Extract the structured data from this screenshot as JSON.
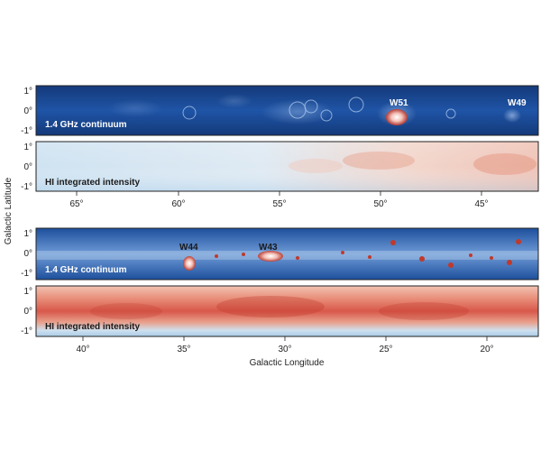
{
  "figure": {
    "y_axis_title": "Galactic Latitude",
    "x_axis_title": "Galactic Longitude",
    "lat_ticks": [
      "1°",
      "0°",
      "-1°"
    ],
    "top_lon_ticks": [
      "65°",
      "60°",
      "55°",
      "50°",
      "45°"
    ],
    "bottom_lon_ticks": [
      "40°",
      "35°",
      "30°",
      "25°",
      "20°"
    ],
    "panels": [
      {
        "label": "1.4 GHz continuum",
        "kind": "continuum",
        "sources": [
          "W51",
          "W49"
        ]
      },
      {
        "label": "HI integrated intensity",
        "kind": "hi"
      },
      {
        "label": "1.4 GHz continuum",
        "kind": "continuum",
        "sources": [
          "W44",
          "W43"
        ]
      },
      {
        "label": "HI integrated intensity",
        "kind": "hi"
      }
    ]
  }
}
